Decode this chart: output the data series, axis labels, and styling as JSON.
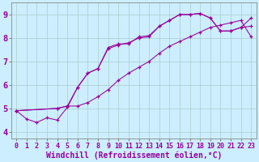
{
  "xlabel": "Windchill (Refroidissement éolien,°C)",
  "xlim": [
    -0.5,
    23.5
  ],
  "ylim": [
    3.7,
    9.5
  ],
  "xticks": [
    0,
    1,
    2,
    3,
    4,
    5,
    6,
    7,
    8,
    9,
    10,
    11,
    12,
    13,
    14,
    15,
    16,
    17,
    18,
    19,
    20,
    21,
    22,
    23
  ],
  "yticks": [
    4,
    5,
    6,
    7,
    8,
    9
  ],
  "bg_color": "#cceeff",
  "line_color": "#990099",
  "line1_x": [
    0,
    1,
    2,
    3,
    4,
    5,
    6,
    7,
    8,
    9,
    10,
    11,
    12,
    13,
    14,
    15,
    16,
    17,
    18,
    19,
    20,
    21,
    22,
    23
  ],
  "line1_y": [
    4.9,
    4.55,
    4.4,
    4.6,
    4.5,
    5.05,
    5.9,
    6.5,
    6.7,
    7.6,
    7.75,
    7.75,
    8.05,
    8.1,
    8.5,
    8.75,
    9.0,
    9.0,
    9.05,
    8.85,
    8.3,
    8.3,
    8.45,
    8.5
  ],
  "line2_x": [
    0,
    4,
    5,
    6,
    7,
    8,
    9,
    10,
    11,
    12,
    13,
    14,
    15,
    16,
    17,
    18,
    19,
    20,
    21,
    22,
    23
  ],
  "line2_y": [
    4.9,
    5.0,
    5.1,
    5.9,
    6.5,
    6.7,
    7.55,
    7.7,
    7.8,
    8.0,
    8.05,
    8.5,
    8.75,
    9.0,
    9.0,
    9.05,
    8.85,
    8.3,
    8.3,
    8.45,
    8.85
  ],
  "line3_x": [
    0,
    4,
    5,
    6,
    7,
    8,
    9,
    10,
    11,
    12,
    13,
    14,
    15,
    16,
    17,
    18,
    19,
    20,
    21,
    22,
    23
  ],
  "line3_y": [
    4.9,
    5.0,
    5.1,
    5.1,
    5.25,
    5.5,
    5.8,
    6.2,
    6.5,
    6.75,
    7.0,
    7.35,
    7.65,
    7.85,
    8.05,
    8.25,
    8.45,
    8.55,
    8.65,
    8.75,
    8.05
  ],
  "grid_color": "#aacccc",
  "tick_fontsize": 6,
  "xlabel_fontsize": 7
}
